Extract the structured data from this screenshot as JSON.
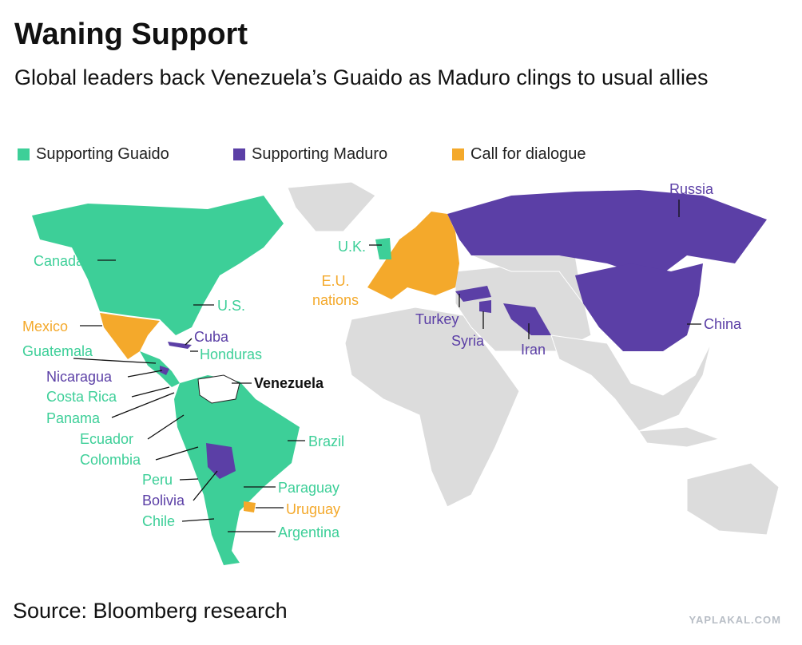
{
  "header": {
    "title": "Waning Support",
    "subtitle": "Global leaders back Venezuela’s Guaido as Maduro clings to usual allies"
  },
  "legend": [
    {
      "label": "Supporting Guaido",
      "color": "#3dcf98",
      "countries": [
        "Canada",
        "U.S.",
        "Guatemala",
        "Honduras",
        "Costa Rica",
        "Panama",
        "Ecuador",
        "Colombia",
        "Peru",
        "Chile",
        "Brazil",
        "Paraguay",
        "Argentina",
        "U.K."
      ]
    },
    {
      "label": "Supporting Maduro",
      "color": "#5b3fa6",
      "countries": [
        "Cuba",
        "Nicaragua",
        "Bolivia",
        "Russia",
        "Turkey",
        "Syria",
        "Iran",
        "China"
      ]
    },
    {
      "label": "Call for dialogue",
      "color": "#f4a92b",
      "countries": [
        "Mexico",
        "Uruguay",
        "E.U. nations"
      ]
    }
  ],
  "highlight": "Venezuela",
  "source": "Source: Bloomberg research",
  "watermark": "YAPLAKAL.COM"
}
